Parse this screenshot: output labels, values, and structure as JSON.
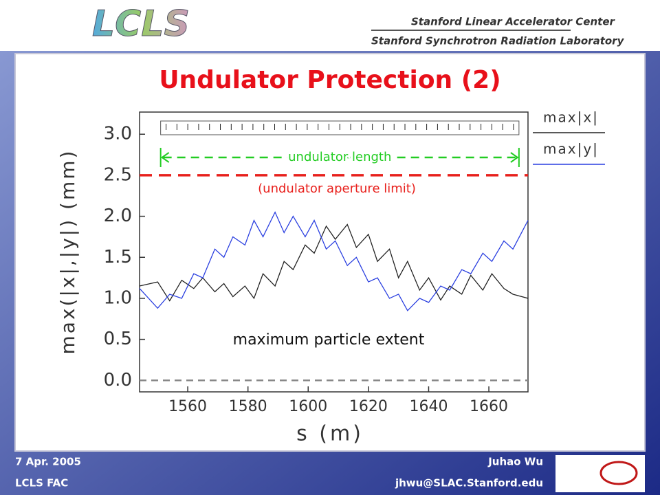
{
  "header": {
    "logo": "LCLS",
    "lines": [
      "Stanford Linear Accelerator Center",
      "Stanford Synchrotron Radiation Laboratory"
    ]
  },
  "chart_data": {
    "type": "line",
    "title": "Undulator Protection (2)",
    "x_label": "s (m)",
    "y_label": "max(|x|,|y|) (mm)",
    "x": [
      1544,
      1550,
      1554,
      1558,
      1562,
      1565,
      1569,
      1572,
      1575,
      1579,
      1582,
      1585,
      1589,
      1592,
      1595,
      1599,
      1602,
      1606,
      1609,
      1613,
      1616,
      1620,
      1623,
      1627,
      1630,
      1633,
      1637,
      1640,
      1644,
      1647,
      1651,
      1654,
      1658,
      1661,
      1665,
      1668,
      1673
    ],
    "series": [
      {
        "name": "max|x|",
        "color": "#222222",
        "values": [
          1.15,
          1.2,
          0.97,
          1.22,
          1.12,
          1.25,
          1.08,
          1.18,
          1.02,
          1.15,
          1.0,
          1.3,
          1.15,
          1.45,
          1.35,
          1.65,
          1.55,
          1.88,
          1.72,
          1.9,
          1.62,
          1.78,
          1.45,
          1.6,
          1.25,
          1.45,
          1.1,
          1.25,
          0.98,
          1.15,
          1.05,
          1.28,
          1.1,
          1.3,
          1.12,
          1.05,
          1.0
        ]
      },
      {
        "name": "max|y|",
        "color": "#2a3fe0",
        "values": [
          1.12,
          0.88,
          1.05,
          1.0,
          1.3,
          1.25,
          1.6,
          1.5,
          1.75,
          1.65,
          1.95,
          1.75,
          2.05,
          1.8,
          2.0,
          1.75,
          1.95,
          1.6,
          1.7,
          1.4,
          1.5,
          1.2,
          1.25,
          1.0,
          1.05,
          0.85,
          1.0,
          0.95,
          1.15,
          1.1,
          1.35,
          1.3,
          1.55,
          1.45,
          1.7,
          1.6,
          1.95
        ]
      }
    ],
    "xlim": [
      1544,
      1673
    ],
    "ylim": [
      -0.14,
      3.27
    ],
    "xticks": [
      1560,
      1580,
      1600,
      1620,
      1640,
      1660
    ],
    "yticks": [
      {
        "value": 0,
        "label": "0.0"
      },
      0.5,
      {
        "value": 1,
        "label": "1.0"
      },
      1.5,
      {
        "value": 2,
        "label": "2.0"
      },
      2.5,
      {
        "value": 3,
        "label": "3.0"
      }
    ],
    "reference_lines": [
      {
        "value": 2.5,
        "label": "(undulator aperture limit)",
        "color": "#e8201c"
      },
      {
        "value": 0,
        "color": "#888888"
      }
    ],
    "span_annotation": {
      "label": "undulator length",
      "x": [
        1551,
        1670
      ],
      "color": "#22cc22"
    },
    "annotation": "maximum particle extent"
  },
  "footer": {
    "date": "7 Apr. 2005",
    "event": "LCLS FAC",
    "author": "Juhao Wu",
    "email": "jhwu@SLAC.Stanford.edu"
  }
}
